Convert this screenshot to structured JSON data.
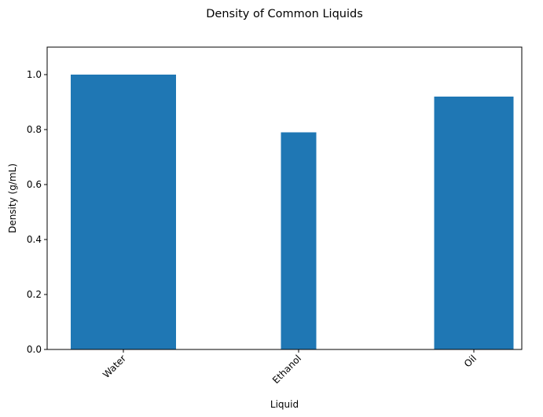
{
  "chart_data": {
    "type": "bar",
    "title": "Density of Common Liquids",
    "xlabel": "Liquid",
    "ylabel": "Density (g/mL)",
    "categories": [
      "Water",
      "Ethanol",
      "Oil"
    ],
    "values": [
      1.0,
      0.79,
      0.92
    ],
    "ylim": [
      0,
      1.1
    ],
    "yticks": [
      "0.0",
      "0.2",
      "0.4",
      "0.6",
      "0.8",
      "1.0"
    ],
    "grid": false,
    "legend": "none",
    "bar_color": "#1f77b4"
  }
}
